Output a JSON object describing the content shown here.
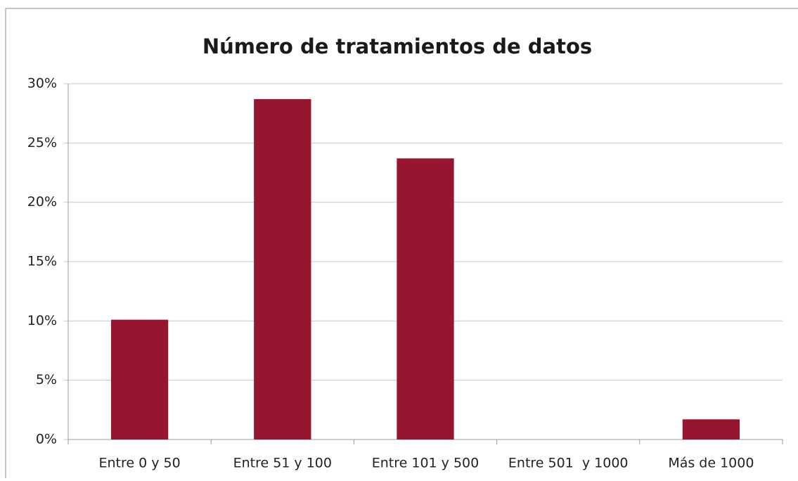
{
  "chart_data": {
    "type": "bar",
    "title": "Número de tratamientos de datos",
    "categories": [
      "Entre 0 y 50",
      "Entre 51 y 100",
      "Entre 101 y 500",
      "Entre 501  y 1000",
      "Más de 1000"
    ],
    "values": [
      10.1,
      28.7,
      23.7,
      0,
      1.7
    ],
    "color": "#96152f",
    "ylim": [
      0,
      30
    ],
    "yticks": [
      {
        "value": 0,
        "label": "0%"
      },
      {
        "value": 5,
        "label": "5%"
      },
      {
        "value": 10,
        "label": "10%"
      },
      {
        "value": 15,
        "label": "15%"
      },
      {
        "value": 20,
        "label": "20%"
      },
      {
        "value": 25,
        "label": "25%"
      },
      {
        "value": 30,
        "label": "30%"
      }
    ],
    "grid": true
  }
}
